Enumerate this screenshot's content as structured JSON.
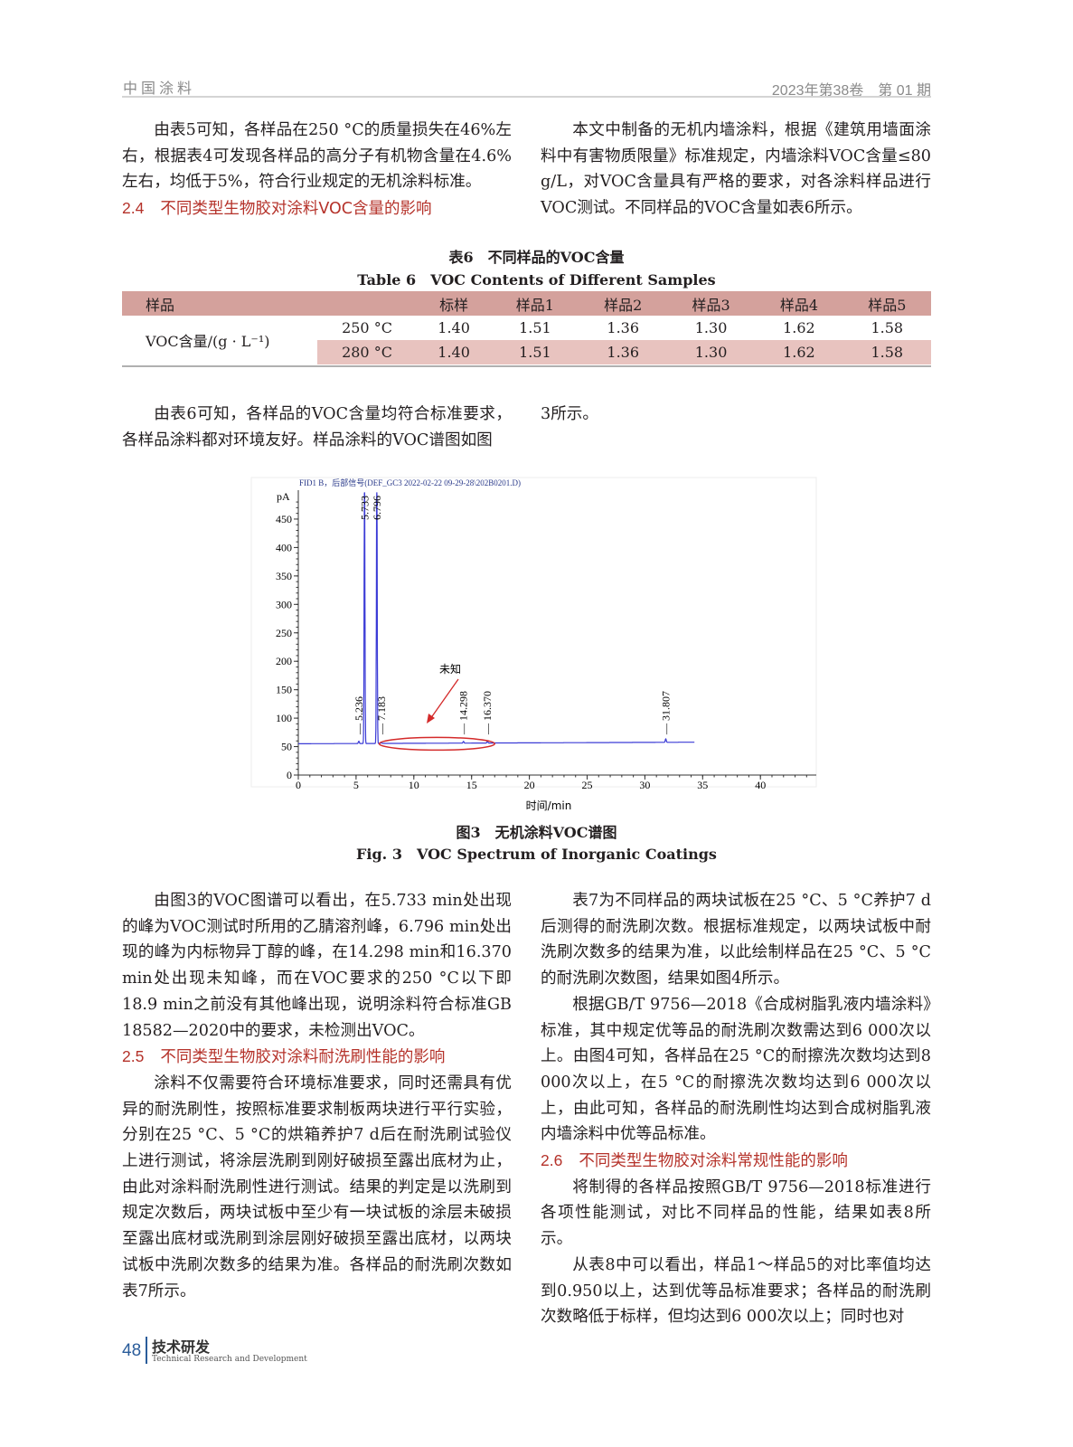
{
  "header": {
    "journal": "中国涂料",
    "issue": "2023年第38卷　第 01 期"
  },
  "left_top": {
    "p1": "由表5可知，各样品在250 °C的质量损失在46%左右，根据表4可发现各样品的高分子有机物含量在4.6%左右，均低于5%，符合行业规定的无机涂料标准。",
    "h_num": "2.4",
    "h_text": "不同类型生物胶对涂料VOC含量的影响"
  },
  "right_top": {
    "p1": "本文中制备的无机内墙涂料，根据《建筑用墙面涂料中有害物质限量》标准规定，内墙涂料VOC含量≤80 g/L，对VOC含量具有严格的要求，对各涂料样品进行VOC测试。不同样品的VOC含量如表6所示。"
  },
  "table6": {
    "caption_cn": "表6　不同样品的VOC含量",
    "caption_en": "Table 6　VOC Contents of Different Samples",
    "header": [
      "样品",
      "",
      "标样",
      "样品1",
      "样品2",
      "样品3",
      "样品4",
      "样品5"
    ],
    "row_label": "VOC含量/(g · L⁻¹)",
    "rows": [
      {
        "temp": "250 °C",
        "values": [
          "1.40",
          "1.51",
          "1.36",
          "1.30",
          "1.62",
          "1.58"
        ]
      },
      {
        "temp": "280 °C",
        "values": [
          "1.40",
          "1.51",
          "1.36",
          "1.30",
          "1.62",
          "1.58"
        ]
      }
    ],
    "header_color": "#d4a19c",
    "shade_color": "#e8c3bf"
  },
  "mid": {
    "left_p": "由表6可知，各样品的VOC含量均符合标准要求，各样品涂料都对环境友好。样品涂料的VOC谱图如图",
    "right_p": "3所示。"
  },
  "chart_data": {
    "type": "line",
    "title": "FID1 B，后部信号(DEF_GC3 2022-02-22 09-29-28\\202B0201.D)",
    "xlabel": "时间/min",
    "ylabel": "pA",
    "xlim": [
      0,
      42
    ],
    "ylim": [
      0,
      480
    ],
    "xticks": [
      "0",
      "5",
      "10",
      "15",
      "20",
      "25",
      "30",
      "35",
      "40"
    ],
    "yticks": [
      "0",
      "50",
      "100",
      "150",
      "200",
      "250",
      "300",
      "350",
      "400",
      "450"
    ],
    "baseline_pA": 55,
    "data_end_min": 34.3,
    "peaks": [
      {
        "rt": "5.236",
        "x": 5.236,
        "height": 4
      },
      {
        "rt": "5.733",
        "x": 5.733,
        "height": 470
      },
      {
        "rt": "6.796",
        "x": 6.796,
        "height": 470
      },
      {
        "rt": "7.183",
        "x": 7.183,
        "height": 2
      },
      {
        "rt": "14.298",
        "x": 14.298,
        "height": 3
      },
      {
        "rt": "16.370",
        "x": 16.37,
        "height": 3
      },
      {
        "rt": "31.807",
        "x": 31.807,
        "height": 6
      }
    ],
    "annotation": {
      "text": "未知",
      "circle_range": [
        7,
        17
      ]
    },
    "line_color": "#3b3bd6",
    "annotation_color": "#d42a2a",
    "grid": false
  },
  "figure3": {
    "caption_cn": "图3　无机涂料VOC谱图",
    "caption_en": "Fig. 3　VOC Spectrum of Inorganic Coatings"
  },
  "left_bottom": {
    "p1": "由图3的VOC图谱可以看出，在5.733 min处出现的峰为VOC测试时所用的乙腈溶剂峰，6.796 min处出现的峰为内标物异丁醇的峰，在14.298 min和16.370 min处出现未知峰，而在VOC要求的250 °C以下即18.9 min之前没有其他峰出现，说明涂料符合标准GB 18582—2020中的要求，未检测出VOC。",
    "h_num": "2.5",
    "h_text": "不同类型生物胶对涂料耐洗刷性能的影响",
    "p2": "涂料不仅需要符合环境标准要求，同时还需具有优异的耐洗刷性，按照标准要求制板两块进行平行实验，分别在25 °C、5 °C的烘箱养护7 d后在耐洗刷试验仪上进行测试，将涂层洗刷到刚好破损至露出底材为止，由此对涂料耐洗刷性进行测试。结果的判定是以洗刷到规定次数后，两块试板中至少有一块试板的涂层未破损至露出底材或洗刷到涂层刚好破损至露出底材，以两块试板中洗刷次数多的结果为准。各样品的耐洗刷次数如表7所示。"
  },
  "right_bottom": {
    "p1": "表7为不同样品的两块试板在25 °C、5 °C养护7 d后测得的耐洗刷次数。根据标准规定，以两块试板中耐洗刷次数多的结果为准，以此绘制样品在25 °C、5 °C的耐洗刷次数图，结果如图4所示。",
    "p2": "根据GB/T 9756—2018《合成树脂乳液内墙涂料》标准，其中规定优等品的耐洗刷次数需达到6 000次以上。由图4可知，各样品在25 °C的耐擦洗次数均达到8 000次以上，在5 °C的耐擦洗次数均达到6 000次以上，由此可知，各样品的耐洗刷性均达到合成树脂乳液内墙涂料中优等品标准。",
    "h_num": "2.6",
    "h_text": "不同类型生物胶对涂料常规性能的影响",
    "p3": "将制得的各样品按照GB/T 9756—2018标准进行各项性能测试，对比不同样品的性能，结果如表8所示。",
    "p4": "从表8中可以看出，样品1～样品5的对比率值均达到0.950以上，达到优等品标准要求；各样品的耐洗刷次数略低于标样，但均达到6 000次以上；同时也对"
  },
  "footer": {
    "page": "48",
    "section_cn": "技术研发",
    "section_en": "Technical Research and Development"
  }
}
